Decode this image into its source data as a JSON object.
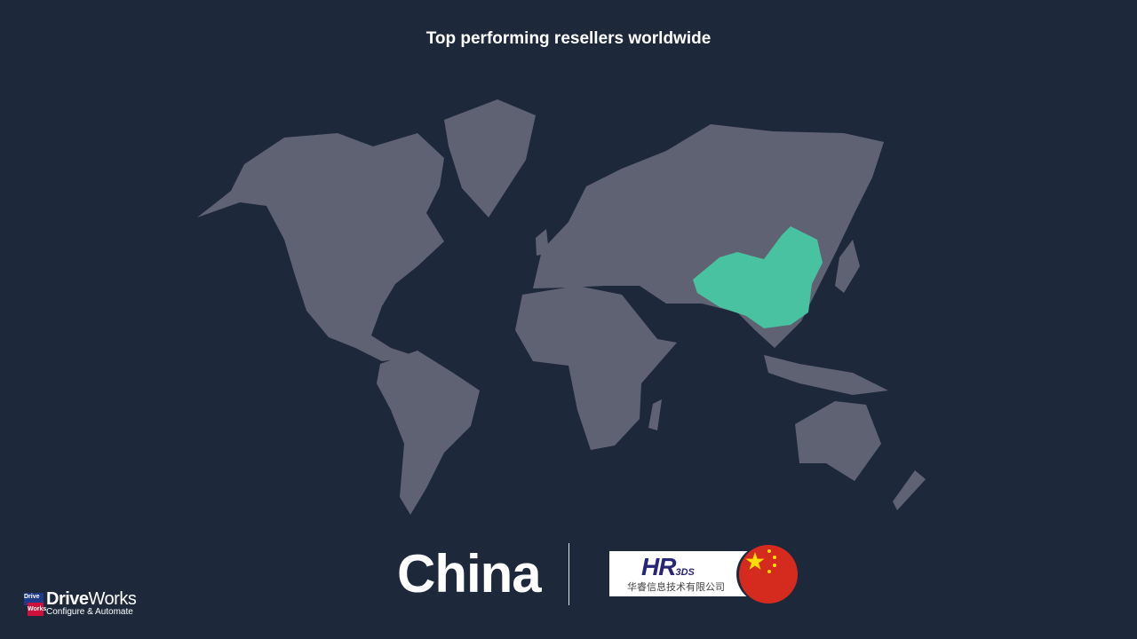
{
  "header": {
    "title": "Top performing resellers worldwide"
  },
  "map": {
    "highlighted_country": "China",
    "land_color": "#5f6272",
    "highlight_color": "#48c2a0",
    "background": "#1d293b"
  },
  "spotlight": {
    "country": "China",
    "reseller_logo_text": "HR",
    "reseller_logo_suffix": "3DS",
    "reseller_name_cn": "华睿信息技术有限公司",
    "flag": "china-flag-icon"
  },
  "brand": {
    "box_top": "Drive",
    "box_bottom": "Works",
    "name_bold": "Drive",
    "name_light": "Works",
    "tagline": "Configure & Automate"
  }
}
